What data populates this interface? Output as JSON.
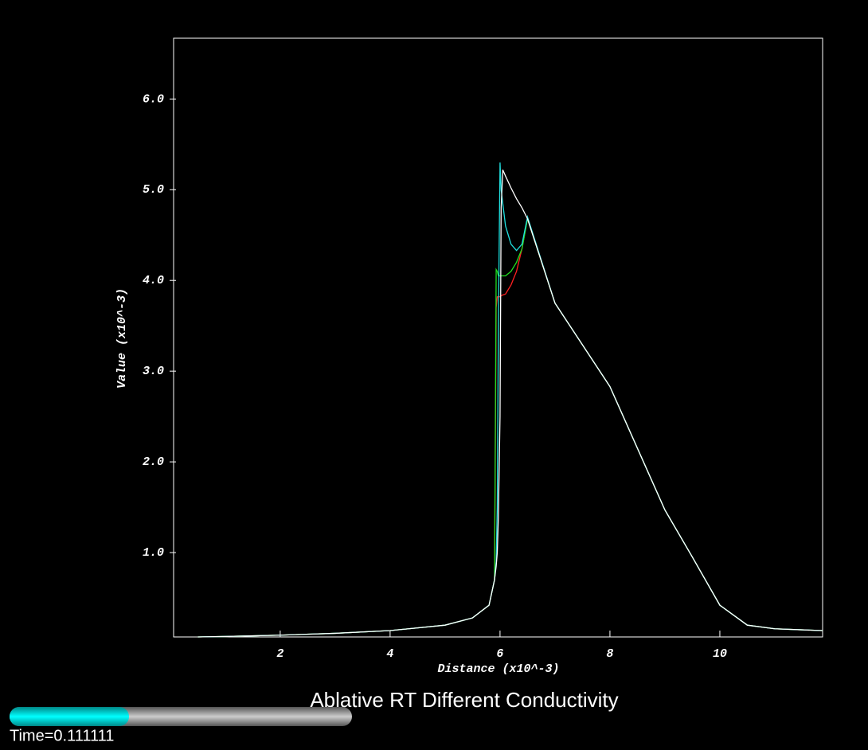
{
  "chart_data": {
    "type": "line",
    "title": "Ablative RT Different Conductivity",
    "x_label": "Distance (x10^-3)",
    "y_label": "Value (x10^-3)",
    "time_label": "Time=0.111111",
    "x": [
      0.5,
      1,
      2,
      3,
      4,
      5,
      5.5,
      5.8,
      5.9,
      5.93,
      5.95,
      5.97,
      6.0,
      6.02,
      6.05,
      6.1,
      6.2,
      6.3,
      6.4,
      6.5,
      7,
      8,
      9,
      9.5,
      10,
      10.5,
      11,
      11.87
    ],
    "series": [
      {
        "name": "red",
        "color": "#ff2020",
        "values": [
          0.07,
          0.075,
          0.09,
          0.11,
          0.14,
          0.2,
          0.28,
          0.42,
          0.7,
          3.7,
          3.82,
          3.82,
          3.82,
          3.83,
          3.84,
          3.85,
          3.95,
          4.1,
          4.35,
          4.68,
          3.75,
          2.83,
          1.47,
          0.95,
          0.42,
          0.2,
          0.16,
          0.14
        ]
      },
      {
        "name": "green",
        "color": "#20e020",
        "values": [
          0.07,
          0.075,
          0.09,
          0.11,
          0.14,
          0.2,
          0.28,
          0.42,
          0.7,
          4.12,
          4.1,
          4.05,
          4.05,
          4.05,
          4.05,
          4.05,
          4.1,
          4.2,
          4.35,
          4.68,
          3.75,
          2.83,
          1.47,
          0.95,
          0.42,
          0.2,
          0.16,
          0.14
        ]
      },
      {
        "name": "cyan",
        "color": "#20e0e0",
        "values": [
          0.07,
          0.075,
          0.09,
          0.11,
          0.14,
          0.2,
          0.28,
          0.42,
          0.7,
          0.9,
          1.5,
          3.5,
          5.3,
          5.0,
          4.85,
          4.6,
          4.4,
          4.33,
          4.4,
          4.7,
          3.75,
          2.83,
          1.47,
          0.95,
          0.42,
          0.2,
          0.16,
          0.14
        ]
      },
      {
        "name": "white",
        "color": "#ffffff",
        "values": [
          0.07,
          0.075,
          0.09,
          0.11,
          0.14,
          0.2,
          0.28,
          0.42,
          0.7,
          0.85,
          1.0,
          1.4,
          2.5,
          4.8,
          5.22,
          5.15,
          5.02,
          4.9,
          4.8,
          4.68,
          3.75,
          2.83,
          1.47,
          0.95,
          0.42,
          0.2,
          0.16,
          0.14
        ]
      }
    ],
    "xlim": [
      0.06,
      11.87
    ],
    "ylim": [
      0.07,
      6.67
    ],
    "xticks": [
      2,
      4,
      6,
      8,
      10
    ],
    "yticks": [
      {
        "value": 1,
        "label": "1.0"
      },
      {
        "value": 2,
        "label": "2.0"
      },
      {
        "value": 3,
        "label": "3.0"
      },
      {
        "value": 4,
        "label": "4.0"
      },
      {
        "value": 5,
        "label": "5.0"
      },
      {
        "value": 6,
        "label": "6.0"
      }
    ]
  }
}
